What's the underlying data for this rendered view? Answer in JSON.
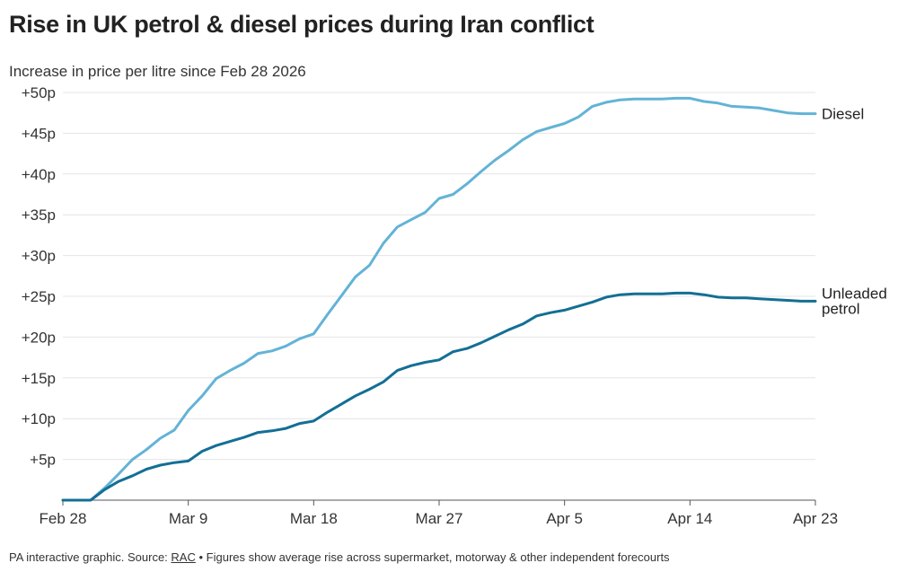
{
  "title": "Rise in UK petrol & diesel prices during Iran conflict",
  "subtitle": "Increase in price per litre since Feb 28 2026",
  "footer": {
    "prefix": "PA interactive graphic. Source: ",
    "source_link": "RAC",
    "suffix": " • Figures show average rise across supermarket, motorway & other independent forecourts"
  },
  "chart_data": {
    "type": "line",
    "title": "Rise in UK petrol & diesel prices during Iran conflict",
    "subtitle": "Increase in price per litre since Feb 28 2026",
    "x_ticks": [
      "Feb 28",
      "Mar 9",
      "Mar 18",
      "Mar 27",
      "Apr 5",
      "Apr 14",
      "Apr 23"
    ],
    "x_tick_day_index": [
      0,
      9,
      18,
      27,
      36,
      45,
      54
    ],
    "x": [
      "Feb 28",
      "Mar 1",
      "Mar 2",
      "Mar 3",
      "Mar 4",
      "Mar 5",
      "Mar 6",
      "Mar 7",
      "Mar 8",
      "Mar 9",
      "Mar 10",
      "Mar 11",
      "Mar 12",
      "Mar 13",
      "Mar 14",
      "Mar 15",
      "Mar 16",
      "Mar 17",
      "Mar 18",
      "Mar 19",
      "Mar 20",
      "Mar 21",
      "Mar 22",
      "Mar 23",
      "Mar 24",
      "Mar 25",
      "Mar 26",
      "Mar 27",
      "Mar 28",
      "Mar 29",
      "Mar 30",
      "Mar 31",
      "Apr 1",
      "Apr 2",
      "Apr 3",
      "Apr 4",
      "Apr 5",
      "Apr 6",
      "Apr 7",
      "Apr 8",
      "Apr 9",
      "Apr 10",
      "Apr 11",
      "Apr 12",
      "Apr 13",
      "Apr 14",
      "Apr 15",
      "Apr 16",
      "Apr 17",
      "Apr 18",
      "Apr 19",
      "Apr 20",
      "Apr 21",
      "Apr 22",
      "Apr 23"
    ],
    "y_ticks": [
      "+5p",
      "+10p",
      "+15p",
      "+20p",
      "+25p",
      "+30p",
      "+35p",
      "+40p",
      "+45p",
      "+50p"
    ],
    "y_tick_values": [
      5,
      10,
      15,
      20,
      25,
      30,
      35,
      40,
      45,
      50
    ],
    "ylim": [
      0,
      50
    ],
    "grid": true,
    "series": [
      {
        "name": "Diesel",
        "color": "#63b3d6",
        "values": [
          0,
          0,
          0,
          1.5,
          3.2,
          5.0,
          6.2,
          7.6,
          8.6,
          11.0,
          12.8,
          14.9,
          15.9,
          16.8,
          18.0,
          18.3,
          18.9,
          19.8,
          20.4,
          22.8,
          25.1,
          27.4,
          28.8,
          31.5,
          33.5,
          34.4,
          35.3,
          37.0,
          37.5,
          38.8,
          40.3,
          41.7,
          42.9,
          44.2,
          45.2,
          45.7,
          46.2,
          47.0,
          48.3,
          48.8,
          49.1,
          49.2,
          49.2,
          49.2,
          49.3,
          49.3,
          48.9,
          48.7,
          48.3,
          48.2,
          48.1,
          47.8,
          47.5,
          47.4,
          47.4
        ]
      },
      {
        "name": "Unleaded petrol",
        "label_lines": [
          "Unleaded",
          "petrol"
        ],
        "color": "#136f94",
        "values": [
          0,
          0,
          0,
          1.3,
          2.3,
          3.0,
          3.8,
          4.3,
          4.6,
          4.8,
          6.0,
          6.7,
          7.2,
          7.7,
          8.3,
          8.5,
          8.8,
          9.4,
          9.7,
          10.8,
          11.8,
          12.8,
          13.6,
          14.5,
          15.9,
          16.5,
          16.9,
          17.2,
          18.2,
          18.6,
          19.3,
          20.1,
          20.9,
          21.6,
          22.6,
          23.0,
          23.3,
          23.8,
          24.3,
          24.9,
          25.2,
          25.3,
          25.3,
          25.3,
          25.4,
          25.4,
          25.2,
          24.9,
          24.8,
          24.8,
          24.7,
          24.6,
          24.5,
          24.4,
          24.4
        ]
      }
    ]
  }
}
